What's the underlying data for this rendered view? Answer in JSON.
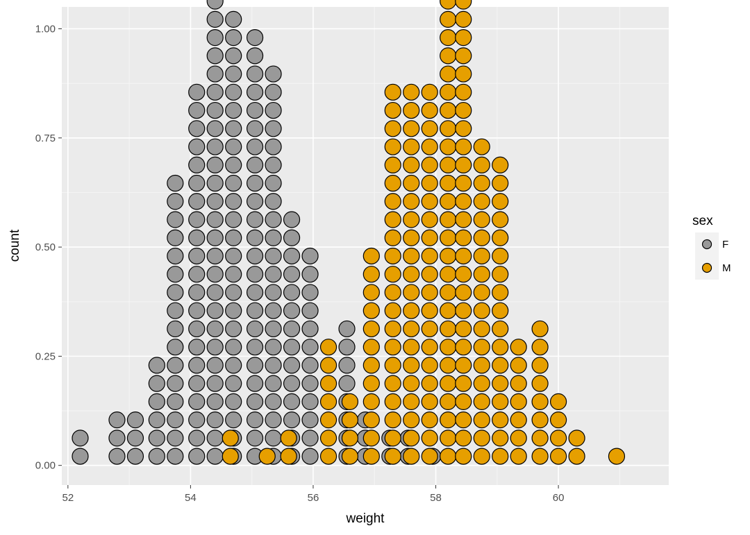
{
  "chart_data": {
    "type": "dotplot",
    "xlabel": "weight",
    "ylabel": "count",
    "xlim": [
      51.9,
      61.8
    ],
    "ylim": [
      -0.045,
      1.05
    ],
    "x_ticks": [
      {
        "value": 52,
        "label": "52"
      },
      {
        "value": 54,
        "label": "54"
      },
      {
        "value": 56,
        "label": "56"
      },
      {
        "value": 58,
        "label": "58"
      },
      {
        "value": 60,
        "label": "60"
      }
    ],
    "y_ticks": [
      {
        "value": 0,
        "label": "0.00"
      },
      {
        "value": 0.25,
        "label": "0.25"
      },
      {
        "value": 0.5,
        "label": "0.50"
      },
      {
        "value": 0.75,
        "label": "0.75"
      },
      {
        "value": 1,
        "label": "1.00"
      }
    ],
    "grid": true,
    "legend": {
      "title": "sex",
      "position": "right",
      "entries": [
        {
          "label": "F",
          "color": "#999999"
        },
        {
          "label": "M",
          "color": "#E69F00"
        }
      ]
    },
    "stack": {
      "first": 0.0208,
      "step": 0.0417
    },
    "series": [
      {
        "name": "F",
        "color": "#999999",
        "stacks": [
          {
            "x": 52.2,
            "count": 2
          },
          {
            "x": 52.8,
            "count": 3
          },
          {
            "x": 53.1,
            "count": 3
          },
          {
            "x": 53.45,
            "count": 6
          },
          {
            "x": 53.75,
            "count": 16
          },
          {
            "x": 54.1,
            "count": 21
          },
          {
            "x": 54.4,
            "count": 26
          },
          {
            "x": 54.7,
            "count": 25
          },
          {
            "x": 55.05,
            "count": 24
          },
          {
            "x": 55.35,
            "count": 22
          },
          {
            "x": 55.65,
            "count": 14
          },
          {
            "x": 55.95,
            "count": 12
          },
          {
            "x": 56.55,
            "count": 8
          },
          {
            "x": 56.85,
            "count": 3
          },
          {
            "x": 57.25,
            "count": 2
          },
          {
            "x": 57.55,
            "count": 2
          },
          {
            "x": 57.95,
            "count": 1
          }
        ]
      },
      {
        "name": "M",
        "color": "#E69F00",
        "stacks": [
          {
            "x": 54.65,
            "count": 2
          },
          {
            "x": 55.25,
            "count": 1
          },
          {
            "x": 55.6,
            "count": 2
          },
          {
            "x": 56.25,
            "count": 7
          },
          {
            "x": 56.6,
            "count": 4
          },
          {
            "x": 56.95,
            "count": 12
          },
          {
            "x": 57.3,
            "count": 21
          },
          {
            "x": 57.6,
            "count": 21
          },
          {
            "x": 57.9,
            "count": 21
          },
          {
            "x": 58.2,
            "count": 26
          },
          {
            "x": 58.45,
            "count": 26
          },
          {
            "x": 58.75,
            "count": 18
          },
          {
            "x": 59.05,
            "count": 17
          },
          {
            "x": 59.35,
            "count": 7
          },
          {
            "x": 59.7,
            "count": 8
          },
          {
            "x": 60.0,
            "count": 4
          },
          {
            "x": 60.3,
            "count": 2
          },
          {
            "x": 60.95,
            "count": 1
          }
        ]
      }
    ]
  }
}
